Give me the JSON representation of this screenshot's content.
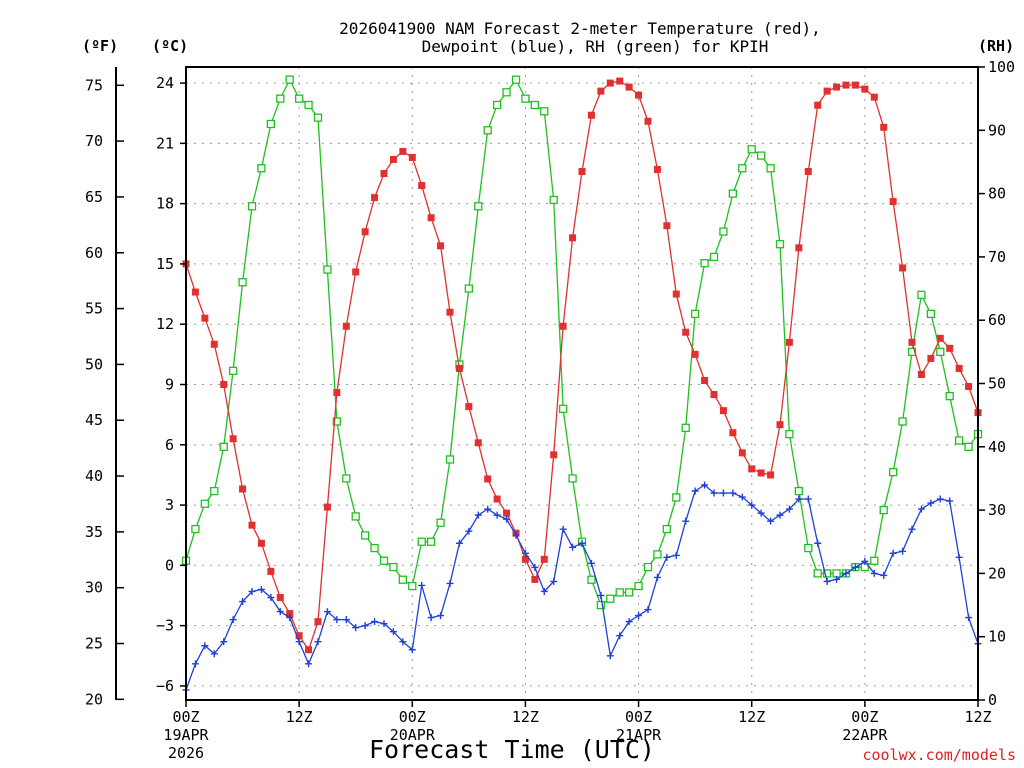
{
  "chart_data": {
    "type": "line",
    "title_line1": "2026041900 NAM Forecast 2-meter Temperature (red),",
    "title_line2": "Dewpoint (blue), RH (green) for KPIH",
    "xlabel": "Forecast Time (UTC)",
    "credit": "coolwx.com/models",
    "units": {
      "fahrenheit": "(ºF)",
      "celsius": "(ºC)",
      "rh": "(RH)"
    },
    "x_range_hours": [
      0,
      84
    ],
    "celsius_range": [
      -6.7,
      24.8
    ],
    "rh_range": [
      0,
      100
    ],
    "fahrenheit_ticks": [
      "20",
      "25",
      "30",
      "35",
      "40",
      "45",
      "50",
      "55",
      "60",
      "65",
      "70",
      "75"
    ],
    "celsius_ticks": [
      "−6",
      "−3",
      "0",
      "3",
      "6",
      "9",
      "12",
      "15",
      "18",
      "21",
      "24"
    ],
    "rh_ticks": [
      "0",
      "10",
      "20",
      "30",
      "40",
      "50",
      "60",
      "70",
      "80",
      "90",
      "100"
    ],
    "x_ticks": [
      {
        "hour": 0,
        "label": "00Z",
        "sub1": "19APR",
        "sub2": "2026"
      },
      {
        "hour": 12,
        "label": "12Z",
        "sub1": "",
        "sub2": ""
      },
      {
        "hour": 24,
        "label": "00Z",
        "sub1": "20APR",
        "sub2": ""
      },
      {
        "hour": 36,
        "label": "12Z",
        "sub1": "",
        "sub2": ""
      },
      {
        "hour": 48,
        "label": "00Z",
        "sub1": "21APR",
        "sub2": ""
      },
      {
        "hour": 60,
        "label": "12Z",
        "sub1": "",
        "sub2": ""
      },
      {
        "hour": 72,
        "label": "00Z",
        "sub1": "22APR",
        "sub2": ""
      },
      {
        "hour": 84,
        "label": "12Z",
        "sub1": "",
        "sub2": ""
      }
    ],
    "series": [
      {
        "name": "Temperature (°C)",
        "axis": "celsius",
        "color": "#e03030",
        "marker": "filled-square",
        "values": [
          [
            0,
            15.0
          ],
          [
            1,
            13.6
          ],
          [
            2,
            12.3
          ],
          [
            3,
            11.0
          ],
          [
            4,
            9.0
          ],
          [
            5,
            6.3
          ],
          [
            6,
            3.8
          ],
          [
            7,
            2.0
          ],
          [
            8,
            1.1
          ],
          [
            9,
            -0.3
          ],
          [
            10,
            -1.6
          ],
          [
            11,
            -2.4
          ],
          [
            12,
            -3.5
          ],
          [
            13,
            -4.2
          ],
          [
            14,
            -2.8
          ],
          [
            15,
            2.9
          ],
          [
            16,
            8.6
          ],
          [
            17,
            11.9
          ],
          [
            18,
            14.6
          ],
          [
            19,
            16.6
          ],
          [
            20,
            18.3
          ],
          [
            21,
            19.5
          ],
          [
            22,
            20.2
          ],
          [
            23,
            20.6
          ],
          [
            24,
            20.3
          ],
          [
            25,
            18.9
          ],
          [
            26,
            17.3
          ],
          [
            27,
            15.9
          ],
          [
            28,
            12.6
          ],
          [
            29,
            9.8
          ],
          [
            30,
            7.9
          ],
          [
            31,
            6.1
          ],
          [
            32,
            4.3
          ],
          [
            33,
            3.3
          ],
          [
            34,
            2.6
          ],
          [
            35,
            1.6
          ],
          [
            36,
            0.3
          ],
          [
            37,
            -0.7
          ],
          [
            38,
            0.3
          ],
          [
            39,
            5.5
          ],
          [
            40,
            11.9
          ],
          [
            41,
            16.3
          ],
          [
            42,
            19.6
          ],
          [
            43,
            22.4
          ],
          [
            44,
            23.6
          ],
          [
            45,
            24.0
          ],
          [
            46,
            24.1
          ],
          [
            47,
            23.8
          ],
          [
            48,
            23.4
          ],
          [
            49,
            22.1
          ],
          [
            50,
            19.7
          ],
          [
            51,
            16.9
          ],
          [
            52,
            13.5
          ],
          [
            53,
            11.6
          ],
          [
            54,
            10.5
          ],
          [
            55,
            9.2
          ],
          [
            56,
            8.5
          ],
          [
            57,
            7.7
          ],
          [
            58,
            6.6
          ],
          [
            59,
            5.6
          ],
          [
            60,
            4.8
          ],
          [
            61,
            4.6
          ],
          [
            62,
            4.5
          ],
          [
            63,
            7.0
          ],
          [
            64,
            11.1
          ],
          [
            65,
            15.8
          ],
          [
            66,
            19.6
          ],
          [
            67,
            22.9
          ],
          [
            68,
            23.6
          ],
          [
            69,
            23.8
          ],
          [
            70,
            23.9
          ],
          [
            71,
            23.9
          ],
          [
            72,
            23.7
          ],
          [
            73,
            23.3
          ],
          [
            74,
            21.8
          ],
          [
            75,
            18.1
          ],
          [
            76,
            14.8
          ],
          [
            77,
            11.1
          ],
          [
            78,
            9.5
          ],
          [
            79,
            10.3
          ],
          [
            80,
            11.3
          ],
          [
            81,
            10.8
          ],
          [
            82,
            9.8
          ],
          [
            83,
            8.9
          ],
          [
            84,
            7.6
          ]
        ]
      },
      {
        "name": "Dewpoint (°C)",
        "axis": "celsius",
        "color": "#2040d8",
        "marker": "plus",
        "values": [
          [
            0,
            -6.2
          ],
          [
            1,
            -4.9
          ],
          [
            2,
            -4.0
          ],
          [
            3,
            -4.4
          ],
          [
            4,
            -3.8
          ],
          [
            5,
            -2.7
          ],
          [
            6,
            -1.8
          ],
          [
            7,
            -1.3
          ],
          [
            8,
            -1.2
          ],
          [
            9,
            -1.6
          ],
          [
            10,
            -2.3
          ],
          [
            11,
            -2.6
          ],
          [
            12,
            -3.8
          ],
          [
            13,
            -4.9
          ],
          [
            14,
            -3.8
          ],
          [
            15,
            -2.3
          ],
          [
            16,
            -2.7
          ],
          [
            17,
            -2.7
          ],
          [
            18,
            -3.1
          ],
          [
            19,
            -3.0
          ],
          [
            20,
            -2.8
          ],
          [
            21,
            -2.9
          ],
          [
            22,
            -3.3
          ],
          [
            23,
            -3.8
          ],
          [
            24,
            -4.2
          ],
          [
            25,
            -1.0
          ],
          [
            26,
            -2.6
          ],
          [
            27,
            -2.5
          ],
          [
            28,
            -0.9
          ],
          [
            29,
            1.1
          ],
          [
            30,
            1.7
          ],
          [
            31,
            2.5
          ],
          [
            32,
            2.8
          ],
          [
            33,
            2.5
          ],
          [
            34,
            2.3
          ],
          [
            35,
            1.5
          ],
          [
            36,
            0.6
          ],
          [
            37,
            -0.1
          ],
          [
            38,
            -1.3
          ],
          [
            39,
            -0.8
          ],
          [
            40,
            1.8
          ],
          [
            41,
            0.9
          ],
          [
            42,
            1.1
          ],
          [
            43,
            0.1
          ],
          [
            44,
            -1.5
          ],
          [
            45,
            -4.5
          ],
          [
            46,
            -3.5
          ],
          [
            47,
            -2.8
          ],
          [
            48,
            -2.5
          ],
          [
            49,
            -2.2
          ],
          [
            50,
            -0.6
          ],
          [
            51,
            0.4
          ],
          [
            52,
            0.5
          ],
          [
            53,
            2.2
          ],
          [
            54,
            3.7
          ],
          [
            55,
            4.0
          ],
          [
            56,
            3.6
          ],
          [
            57,
            3.6
          ],
          [
            58,
            3.6
          ],
          [
            59,
            3.4
          ],
          [
            60,
            3.0
          ],
          [
            61,
            2.6
          ],
          [
            62,
            2.2
          ],
          [
            63,
            2.5
          ],
          [
            64,
            2.8
          ],
          [
            65,
            3.3
          ],
          [
            66,
            3.3
          ],
          [
            67,
            1.1
          ],
          [
            68,
            -0.8
          ],
          [
            69,
            -0.7
          ],
          [
            70,
            -0.4
          ],
          [
            71,
            -0.1
          ],
          [
            72,
            0.2
          ],
          [
            73,
            -0.4
          ],
          [
            74,
            -0.5
          ],
          [
            75,
            0.6
          ],
          [
            76,
            0.7
          ],
          [
            77,
            1.8
          ],
          [
            78,
            2.8
          ],
          [
            79,
            3.1
          ],
          [
            80,
            3.3
          ],
          [
            81,
            3.2
          ],
          [
            82,
            0.4
          ],
          [
            83,
            -2.6
          ],
          [
            84,
            -3.9
          ]
        ]
      },
      {
        "name": "Relative Humidity (%)",
        "axis": "rh",
        "color": "#20c020",
        "marker": "open-square",
        "values": [
          [
            0,
            22
          ],
          [
            1,
            27
          ],
          [
            2,
            31
          ],
          [
            3,
            33
          ],
          [
            4,
            40
          ],
          [
            5,
            52
          ],
          [
            6,
            66
          ],
          [
            7,
            78
          ],
          [
            8,
            84
          ],
          [
            9,
            91
          ],
          [
            10,
            95
          ],
          [
            11,
            98
          ],
          [
            12,
            95
          ],
          [
            13,
            94
          ],
          [
            14,
            92
          ],
          [
            15,
            68
          ],
          [
            16,
            44
          ],
          [
            17,
            35
          ],
          [
            18,
            29
          ],
          [
            19,
            26
          ],
          [
            20,
            24
          ],
          [
            21,
            22
          ],
          [
            22,
            21
          ],
          [
            23,
            19
          ],
          [
            24,
            18
          ],
          [
            25,
            25
          ],
          [
            26,
            25
          ],
          [
            27,
            28
          ],
          [
            28,
            38
          ],
          [
            29,
            53
          ],
          [
            30,
            65
          ],
          [
            31,
            78
          ],
          [
            32,
            90
          ],
          [
            33,
            94
          ],
          [
            34,
            96
          ],
          [
            35,
            98
          ],
          [
            36,
            95
          ],
          [
            37,
            94
          ],
          [
            38,
            93
          ],
          [
            39,
            79
          ],
          [
            40,
            46
          ],
          [
            41,
            35
          ],
          [
            42,
            25
          ],
          [
            43,
            19
          ],
          [
            44,
            15
          ],
          [
            45,
            16
          ],
          [
            46,
            17
          ],
          [
            47,
            17
          ],
          [
            48,
            18
          ],
          [
            49,
            21
          ],
          [
            50,
            23
          ],
          [
            51,
            27
          ],
          [
            52,
            32
          ],
          [
            53,
            43
          ],
          [
            54,
            61
          ],
          [
            55,
            69
          ],
          [
            56,
            70
          ],
          [
            57,
            74
          ],
          [
            58,
            80
          ],
          [
            59,
            84
          ],
          [
            60,
            87
          ],
          [
            61,
            86
          ],
          [
            62,
            84
          ],
          [
            63,
            72
          ],
          [
            64,
            42
          ],
          [
            65,
            33
          ],
          [
            66,
            24
          ],
          [
            67,
            20
          ],
          [
            68,
            20
          ],
          [
            69,
            20
          ],
          [
            70,
            20
          ],
          [
            71,
            21
          ],
          [
            72,
            21
          ],
          [
            73,
            22
          ],
          [
            74,
            30
          ],
          [
            75,
            36
          ],
          [
            76,
            44
          ],
          [
            77,
            55
          ],
          [
            78,
            64
          ],
          [
            79,
            61
          ],
          [
            80,
            55
          ],
          [
            81,
            48
          ],
          [
            82,
            41
          ],
          [
            83,
            40
          ],
          [
            84,
            42
          ]
        ]
      }
    ]
  }
}
